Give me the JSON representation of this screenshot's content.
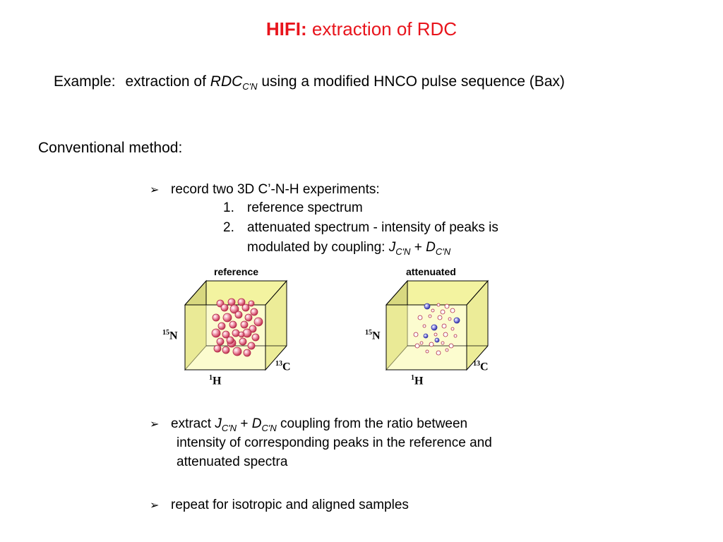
{
  "title": {
    "bold": "HIFI:",
    "rest": " extraction of RDC"
  },
  "example": {
    "label": "Example:",
    "pre": "extraction of ",
    "rdc": "RDC",
    "rdc_sub": "C'N",
    "post": " using a modified HNCO pulse sequence (Bax)"
  },
  "conventional": "Conventional method:",
  "bullets": {
    "b1": {
      "text": "record two 3D C’-N-H experiments:",
      "items": [
        {
          "num": "1.",
          "text": "reference spectrum"
        },
        {
          "num": "2.",
          "text": "attenuated spectrum - intensity of peaks is"
        }
      ],
      "item2_line2_pre": "modulated by coupling: ",
      "j": "J",
      "j_sub": "C'N",
      "plus": " + ",
      "d": "D",
      "d_sub": "C'N"
    },
    "b2": {
      "pre": "extract ",
      "j": "J",
      "j_sub": "C'N",
      "plus": " + ",
      "d": "D",
      "d_sub": "C'N",
      "post": " coupling from the ratio between",
      "line2": "intensity of corresponding peaks in the reference and",
      "line3": "attenuated spectra"
    },
    "b3": {
      "text": "repeat for isotropic and aligned samples"
    }
  },
  "figure": {
    "reference": {
      "title": "reference",
      "n_mass": "15",
      "n": "N",
      "h_mass": "1",
      "h": "H",
      "c_mass": "13",
      "c": "C"
    },
    "attenuated": {
      "title": "attenuated",
      "n_mass": "15",
      "n": "N",
      "h_mass": "1",
      "h": "H",
      "c_mass": "13",
      "c": "C"
    }
  },
  "colors": {
    "title": "#e8141c",
    "cube_fill": "#f9f9a8",
    "cube_side": "#d8d880",
    "peak_red": "#e8708a",
    "peak_blue": "#6a6ad8"
  }
}
